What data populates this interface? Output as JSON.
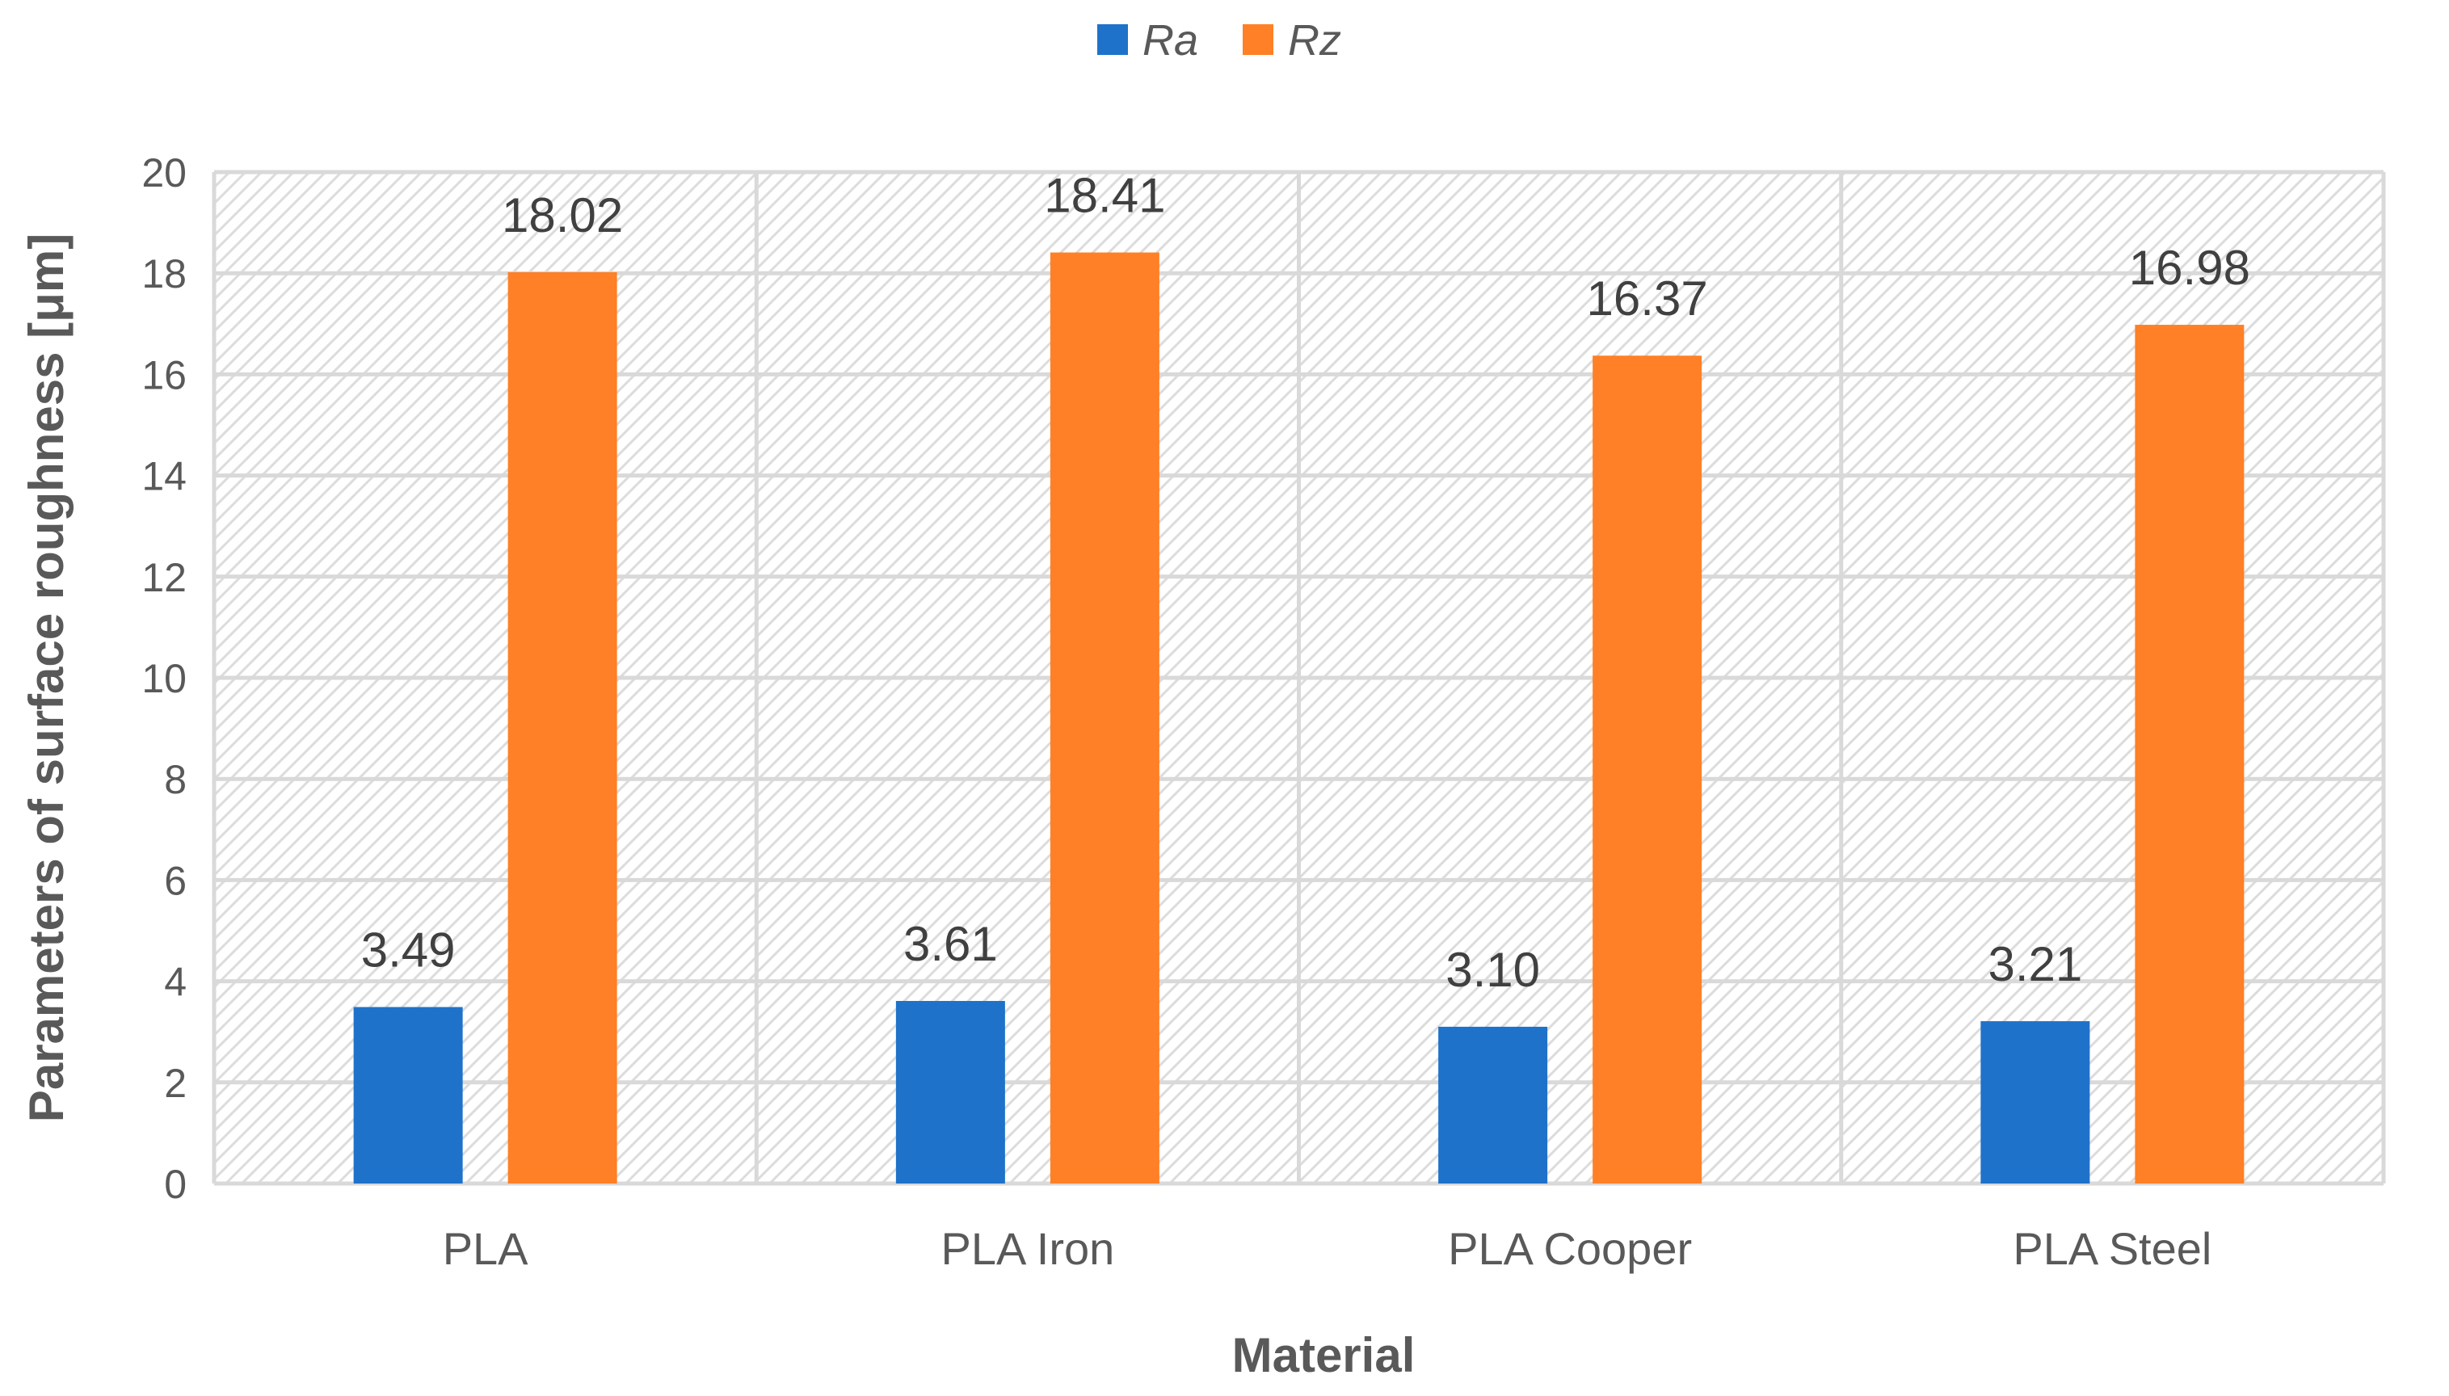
{
  "chart_data": {
    "type": "bar",
    "categories": [
      "PLA",
      "PLA Iron",
      "PLA Cooper",
      "PLA Steel"
    ],
    "series": [
      {
        "name": "Ra",
        "values": [
          3.49,
          3.61,
          3.1,
          3.21
        ],
        "labels": [
          "3.49",
          "3.61",
          "3.10",
          "3.21"
        ],
        "color": "#1F72C9"
      },
      {
        "name": "Rz",
        "values": [
          18.02,
          18.41,
          16.37,
          16.98
        ],
        "labels": [
          "18.02",
          "18.41",
          "16.37",
          "16.98"
        ],
        "color": "#FF8026"
      }
    ],
    "xlabel": "Material",
    "ylabel": "Parameters of surface roughness [μm]",
    "ylim": [
      0,
      20
    ],
    "yticks": [
      0,
      2,
      4,
      6,
      8,
      10,
      12,
      14,
      16,
      18,
      20
    ],
    "grid": true,
    "legend": "top-center"
  }
}
